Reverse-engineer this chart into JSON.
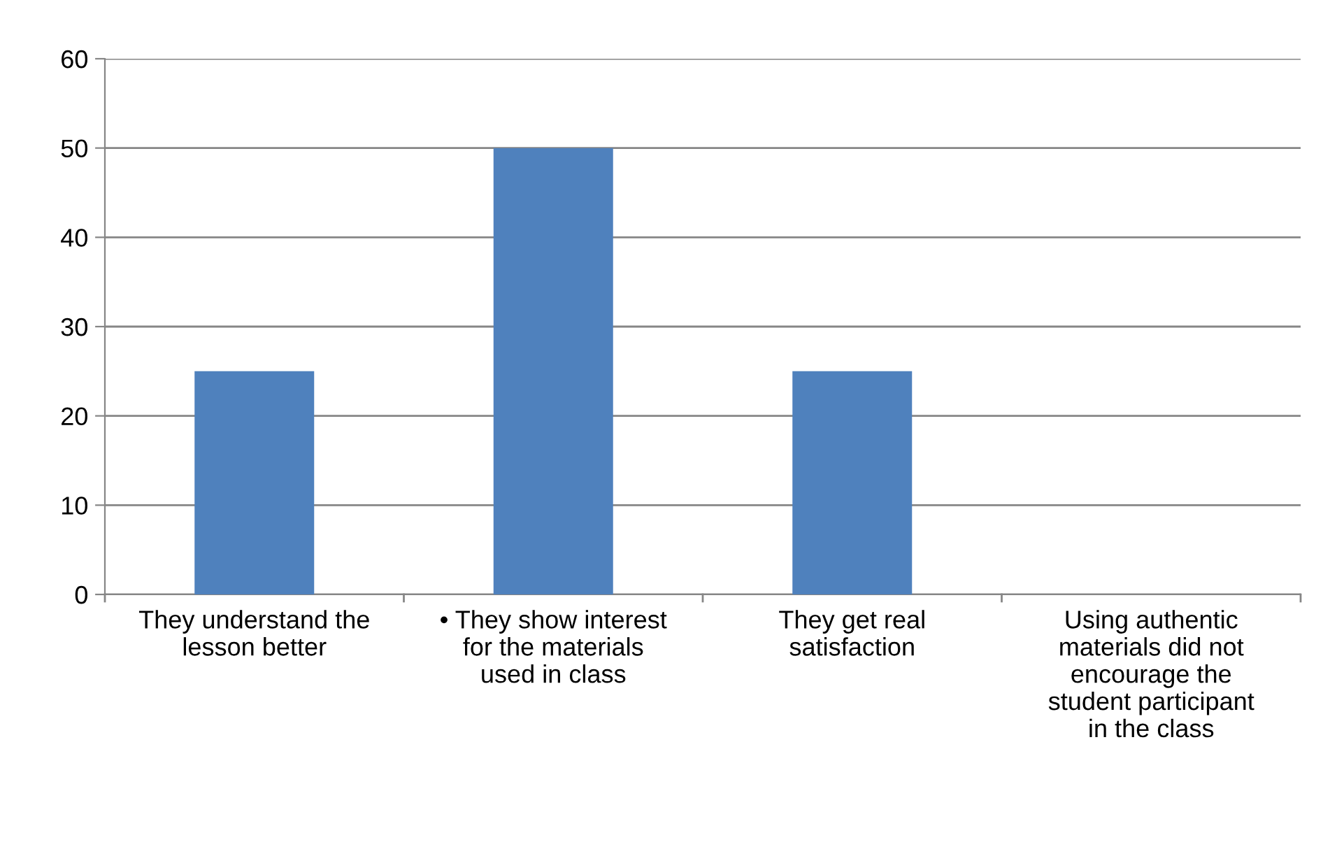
{
  "chart_data": {
    "type": "bar",
    "categories": [
      "They understand the lesson better",
      "• They show interest for the materials used in class",
      "They get real satisfaction",
      "Using authentic materials did not encourage the student participant in the class"
    ],
    "values": [
      25,
      50,
      25,
      0
    ],
    "color": "#4f81bd",
    "ylim": [
      0,
      60
    ],
    "yticks": [
      0,
      10,
      20,
      30,
      40,
      50,
      60
    ],
    "grid": "y"
  }
}
